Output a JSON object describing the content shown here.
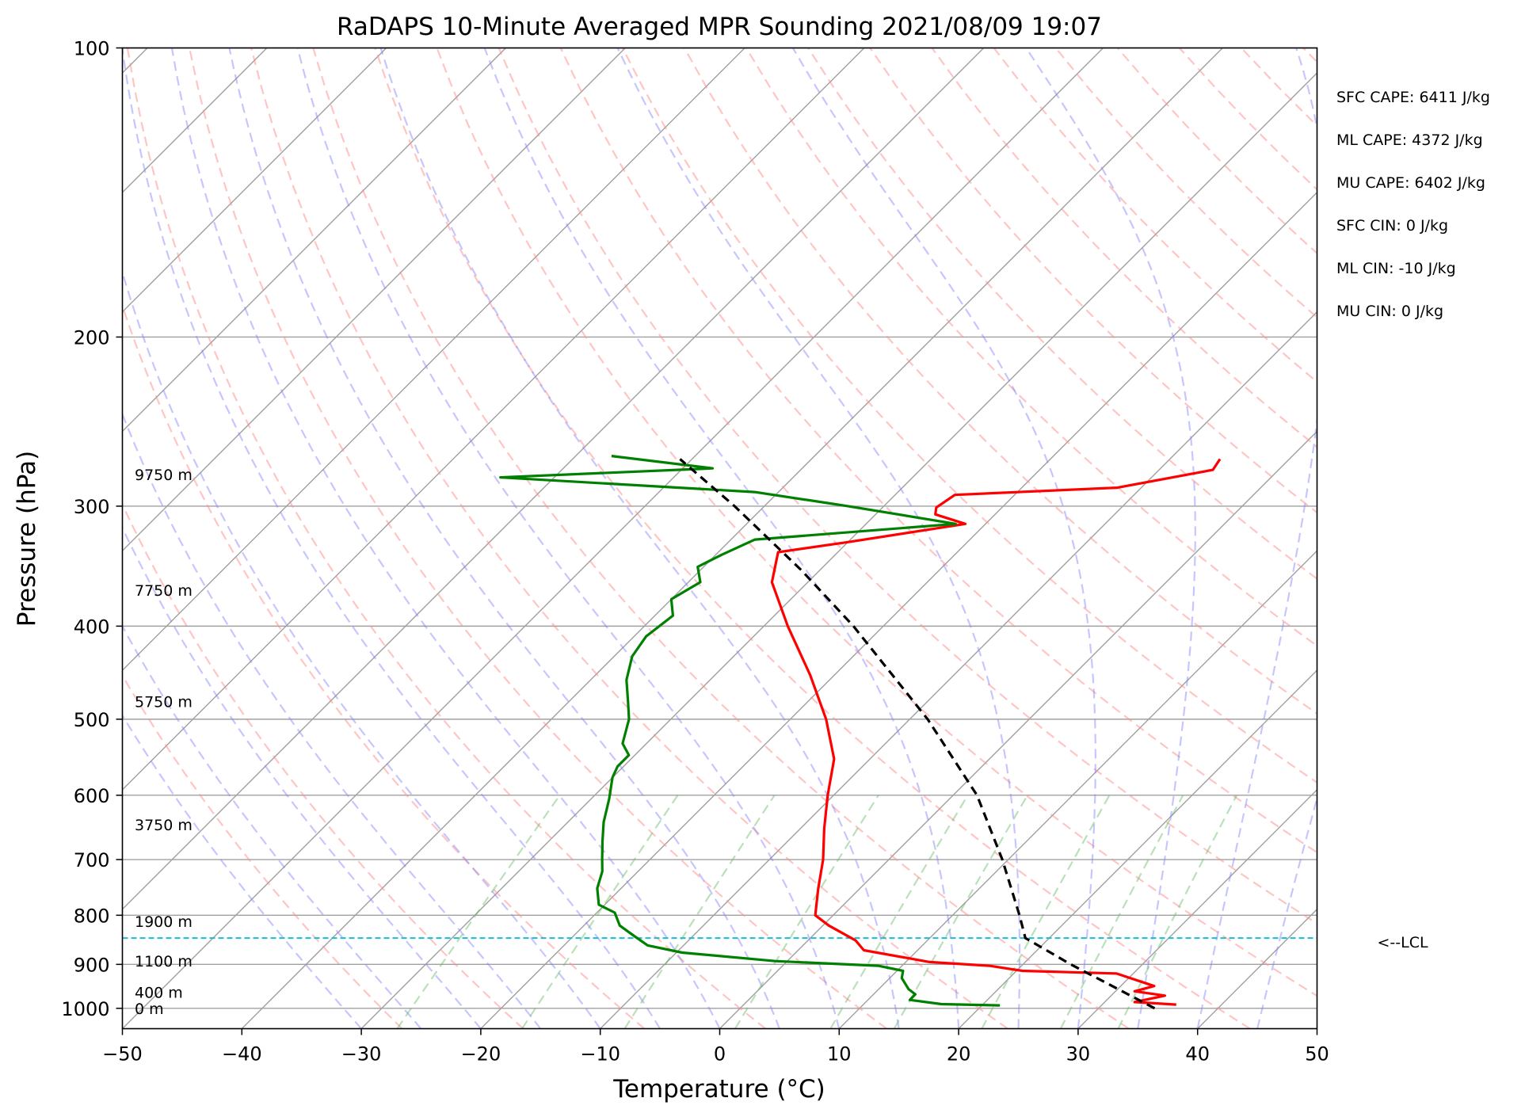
{
  "chart_data": {
    "type": "skew-t",
    "title": "RaDAPS 10-Minute Averaged MPR Sounding 2021/08/09 19:07",
    "xlabel": "Temperature (°C)",
    "ylabel": "Pressure (hPa)",
    "xlim": [
      -50,
      50
    ],
    "ylim": [
      1050,
      100
    ],
    "y_scale": "log",
    "grid": true,
    "x_ticks": [
      -50,
      -40,
      -30,
      -20,
      -10,
      0,
      10,
      20,
      30,
      40,
      50
    ],
    "x_tick_labels": [
      "−50",
      "−40",
      "−30",
      "−20",
      "−10",
      "0",
      "10",
      "20",
      "30",
      "40",
      "50"
    ],
    "y_ticks": [
      100,
      200,
      300,
      400,
      500,
      600,
      700,
      800,
      900,
      1000
    ],
    "y_tick_labels": [
      "100",
      "200",
      "300",
      "400",
      "500",
      "600",
      "700",
      "800",
      "900",
      "1000"
    ],
    "height_labels": [
      {
        "p": 1000,
        "text": "0 m"
      },
      {
        "p": 962,
        "text": "400 m"
      },
      {
        "p": 893,
        "text": "1100 m"
      },
      {
        "p": 812,
        "text": "1900 m"
      },
      {
        "p": 644,
        "text": "3750 m"
      },
      {
        "p": 479,
        "text": "5750 m"
      },
      {
        "p": 367,
        "text": "7750 m"
      },
      {
        "p": 278,
        "text": "9750 m"
      }
    ],
    "indices": [
      "SFC CAPE: 6411 J/kg",
      "ML CAPE: 4372 J/kg",
      "MU CAPE: 6402 J/kg",
      "SFC CIN: 0 J/kg",
      "ML CIN: -10 J/kg",
      "MU CIN: 0 J/kg"
    ],
    "lcl": {
      "p": 845,
      "label": "<--LCL"
    },
    "colors": {
      "temperature": "#ff0000",
      "dewpoint": "#008000",
      "parcel": "#000000",
      "lcl_line": "#17becf",
      "dry_adiabats": "#ff8c8c",
      "moist_adiabats": "#8080ff",
      "mixing_ratio": "#66bb66",
      "isotherms": "#a0a0a0"
    },
    "series": [
      {
        "role": "temperature",
        "points": [
          {
            "p": 991,
            "t": 36.2
          },
          {
            "p": 985,
            "t": 32.5
          },
          {
            "p": 970,
            "t": 34.5
          },
          {
            "p": 960,
            "t": 31.6
          },
          {
            "p": 948,
            "t": 32.8
          },
          {
            "p": 920,
            "t": 28.6
          },
          {
            "p": 914,
            "t": 20.5
          },
          {
            "p": 903,
            "t": 17.3
          },
          {
            "p": 895,
            "t": 12.0
          },
          {
            "p": 870,
            "t": 5.5
          },
          {
            "p": 850,
            "t": 4.0
          },
          {
            "p": 820,
            "t": 0.5
          },
          {
            "p": 800,
            "t": -1.5
          },
          {
            "p": 750,
            "t": -3.5
          },
          {
            "p": 700,
            "t": -5.5
          },
          {
            "p": 650,
            "t": -8.0
          },
          {
            "p": 600,
            "t": -10.5
          },
          {
            "p": 550,
            "t": -13.0
          },
          {
            "p": 500,
            "t": -17.0
          },
          {
            "p": 450,
            "t": -22.0
          },
          {
            "p": 400,
            "t": -28.0
          },
          {
            "p": 360,
            "t": -33.0
          },
          {
            "p": 335,
            "t": -35.0
          },
          {
            "p": 327,
            "t": -30.0
          },
          {
            "p": 313,
            "t": -21.7
          },
          {
            "p": 306,
            "t": -25.0
          },
          {
            "p": 301,
            "t": -25.5
          },
          {
            "p": 292,
            "t": -25.0
          },
          {
            "p": 287,
            "t": -12.0
          },
          {
            "p": 275,
            "t": -5.5
          },
          {
            "p": 268,
            "t": -5.8
          }
        ]
      },
      {
        "role": "dewpoint",
        "points": [
          {
            "p": 993,
            "t": 21.5
          },
          {
            "p": 990,
            "t": 16.5
          },
          {
            "p": 980,
            "t": 13.5
          },
          {
            "p": 967,
            "t": 13.5
          },
          {
            "p": 955,
            "t": 12.5
          },
          {
            "p": 930,
            "t": 11.0
          },
          {
            "p": 914,
            "t": 10.5
          },
          {
            "p": 903,
            "t": 8.0
          },
          {
            "p": 893,
            "t": -1.0
          },
          {
            "p": 875,
            "t": -9.5
          },
          {
            "p": 860,
            "t": -13.0
          },
          {
            "p": 840,
            "t": -15.0
          },
          {
            "p": 820,
            "t": -17.0
          },
          {
            "p": 795,
            "t": -18.5
          },
          {
            "p": 780,
            "t": -20.5
          },
          {
            "p": 750,
            "t": -22.0
          },
          {
            "p": 720,
            "t": -23.0
          },
          {
            "p": 700,
            "t": -24.0
          },
          {
            "p": 670,
            "t": -25.5
          },
          {
            "p": 640,
            "t": -27.0
          },
          {
            "p": 605,
            "t": -28.5
          },
          {
            "p": 575,
            "t": -30.0
          },
          {
            "p": 560,
            "t": -30.5
          },
          {
            "p": 545,
            "t": -30.5
          },
          {
            "p": 530,
            "t": -32.0
          },
          {
            "p": 500,
            "t": -33.5
          },
          {
            "p": 480,
            "t": -35.0
          },
          {
            "p": 455,
            "t": -37.0
          },
          {
            "p": 430,
            "t": -38.5
          },
          {
            "p": 410,
            "t": -39.0
          },
          {
            "p": 390,
            "t": -38.5
          },
          {
            "p": 375,
            "t": -40.0
          },
          {
            "p": 360,
            "t": -39.0
          },
          {
            "p": 347,
            "t": -40.5
          },
          {
            "p": 337,
            "t": -39.5
          },
          {
            "p": 325,
            "t": -38.0
          },
          {
            "p": 313,
            "t": -22.5
          },
          {
            "p": 300,
            "t": -33.0
          },
          {
            "p": 290,
            "t": -42.0
          },
          {
            "p": 280,
            "t": -64.5
          },
          {
            "p": 274,
            "t": -47.5
          },
          {
            "p": 266,
            "t": -57.0
          }
        ]
      },
      {
        "role": "parcel",
        "points": [
          {
            "p": 1000,
            "t": 34.7
          },
          {
            "p": 950,
            "t": 29.5
          },
          {
            "p": 900,
            "t": 24.0
          },
          {
            "p": 845,
            "t": 18.0
          },
          {
            "p": 800,
            "t": 15.6
          },
          {
            "p": 700,
            "t": 9.5
          },
          {
            "p": 600,
            "t": 2.0
          },
          {
            "p": 500,
            "t": -8.5
          },
          {
            "p": 400,
            "t": -22.5
          },
          {
            "p": 350,
            "t": -31.5
          },
          {
            "p": 300,
            "t": -42.5
          },
          {
            "p": 268,
            "t": -51.0
          }
        ]
      }
    ]
  }
}
